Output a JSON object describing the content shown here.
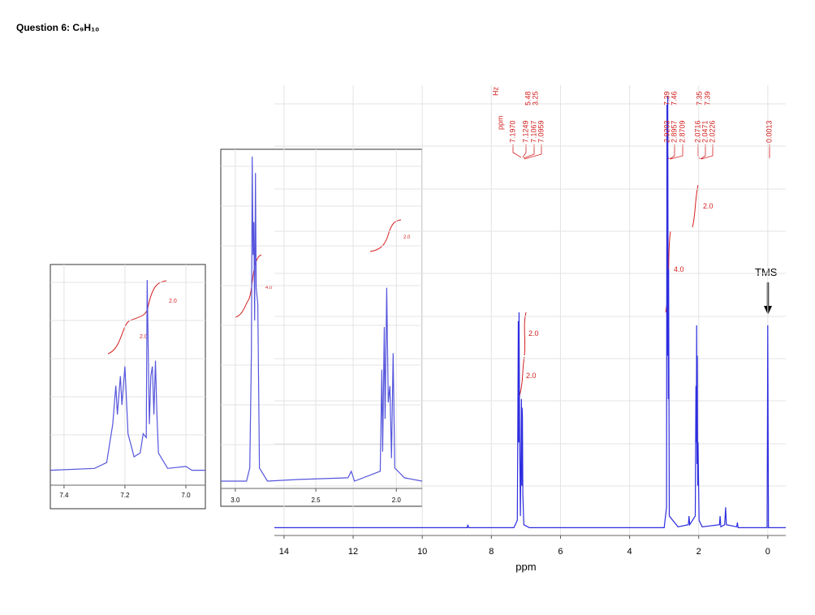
{
  "title": "Question 6:  C₉H₁₀",
  "chart_data": [
    {
      "type": "line",
      "xlabel": "ppm",
      "color": "#2d2de0",
      "grid": true,
      "xlim": [
        14.28,
        -0.52
      ],
      "ylim": [
        0,
        100
      ],
      "xticks": [
        14,
        12,
        10,
        8,
        6,
        4,
        2,
        0
      ],
      "x": [
        14.28,
        8.7,
        8.68,
        8.66,
        7.35,
        7.25,
        7.22,
        7.21,
        7.2,
        7.18,
        7.16,
        7.13,
        7.12,
        7.11,
        7.1,
        7.09,
        7.06,
        6.9,
        5.5,
        3.0,
        2.93,
        2.92,
        2.9,
        2.895,
        2.88,
        2.87,
        2.85,
        2.6,
        2.3,
        2.28,
        2.26,
        2.1,
        2.08,
        2.07,
        2.06,
        2.05,
        2.04,
        2.03,
        2.02,
        1.99,
        1.9,
        1.4,
        1.38,
        1.36,
        1.25,
        1.22,
        1.2,
        0.9,
        0.88,
        0.86,
        0.02,
        0.0013,
        -0.02,
        -0.52
      ],
      "values": [
        0.3,
        0.3,
        1,
        0.3,
        0.3,
        2,
        48,
        20,
        50,
        20,
        3,
        30,
        10,
        28,
        26,
        8,
        1,
        0.3,
        0.3,
        0.3,
        5,
        98,
        40,
        100,
        30,
        60,
        3,
        0.5,
        1,
        3,
        1,
        3,
        33,
        20,
        47,
        15,
        40,
        10,
        20,
        2,
        0.5,
        1,
        3,
        0.5,
        1,
        5,
        1,
        0.5,
        1.5,
        0.3,
        0.3,
        47,
        0.3,
        0.3
      ],
      "annotations": [
        "2.0",
        "2.0",
        "4.0",
        "2.0",
        "TMS"
      ],
      "peak_labels": {
        "ppm": "ppm",
        "hz": "Hz",
        "groups": [
          {
            "ppm": [
              "7.1970",
              "7.1249",
              "7.1067",
              "7.0959"
            ],
            "hz": [
              "5.48",
              "3.25"
            ]
          },
          {
            "ppm": [
              "2.9203",
              "2.8957",
              "2.8709"
            ],
            "hz": [
              "7.39",
              "7.46"
            ]
          },
          {
            "ppm": [
              "2.0716",
              "2.0471",
              "2.0226"
            ],
            "hz": [
              "7.35",
              "7.39"
            ]
          },
          {
            "ppm": [
              "0.0013"
            ],
            "hz": []
          }
        ]
      }
    },
    {
      "type": "line",
      "color": "#5555dd",
      "grid": true,
      "xlim": [
        7.445,
        6.936
      ],
      "ylim": [
        0,
        100
      ],
      "xticks": [
        {
          "value": 7.4,
          "label": "7.4"
        },
        {
          "value": 7.2,
          "label": "7.2"
        },
        {
          "value": 7.0,
          "label": "7.0"
        }
      ],
      "x": [
        7.445,
        7.3,
        7.26,
        7.24,
        7.23,
        7.225,
        7.215,
        7.21,
        7.2,
        7.19,
        7.17,
        7.15,
        7.14,
        7.13,
        7.127,
        7.12,
        7.115,
        7.11,
        7.105,
        7.1,
        7.095,
        7.09,
        7.06,
        7.0,
        6.98,
        6.936
      ],
      "values": [
        1,
        2,
        5,
        25,
        45,
        30,
        50,
        35,
        55,
        20,
        8,
        10,
        20,
        18,
        100,
        25,
        50,
        55,
        30,
        58,
        30,
        10,
        2,
        3,
        1,
        1
      ],
      "annotations": [
        "2.0",
        "2.0"
      ]
    },
    {
      "type": "line",
      "color": "#5555dd",
      "grid": true,
      "xlim": [
        3.09,
        1.84
      ],
      "ylim": [
        0,
        100
      ],
      "xticks": [
        {
          "value": 3.0,
          "label": "3.0"
        },
        {
          "value": 2.5,
          "label": "2.5"
        },
        {
          "value": 2.0,
          "label": "2.0"
        }
      ],
      "x": [
        3.09,
        2.93,
        2.91,
        2.9,
        2.895,
        2.89,
        2.885,
        2.88,
        2.875,
        2.87,
        2.86,
        2.85,
        2.8,
        2.6,
        2.3,
        2.28,
        2.26,
        2.1,
        2.09,
        2.085,
        2.075,
        2.07,
        2.06,
        2.05,
        2.04,
        2.03,
        2.02,
        2.01,
        1.95,
        1.84
      ],
      "values": [
        1,
        1,
        5,
        40,
        100,
        70,
        80,
        50,
        95,
        60,
        55,
        5,
        1,
        1.5,
        2,
        4,
        1,
        4,
        35,
        10,
        48,
        20,
        60,
        25,
        30,
        8,
        40,
        5,
        2,
        1
      ],
      "annotations": [
        "4.0",
        "2.0"
      ]
    }
  ]
}
